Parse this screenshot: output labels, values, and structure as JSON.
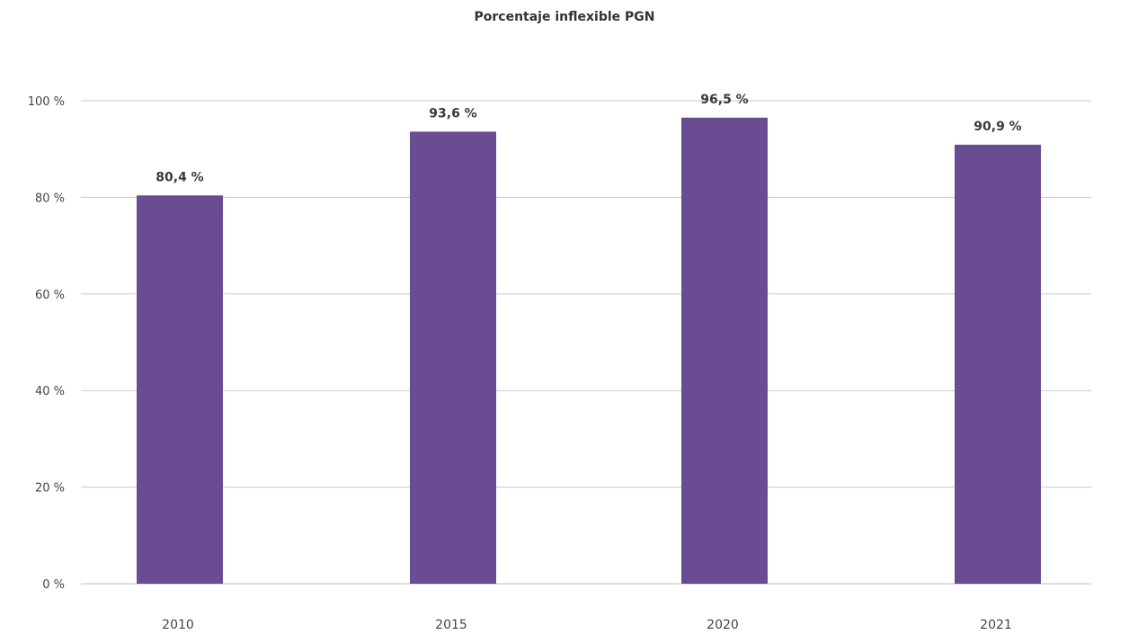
{
  "chart_data": {
    "type": "bar",
    "title": "Porcentaje inflexible PGN",
    "xlabel": "",
    "ylabel": "",
    "categories": [
      "2010",
      "2015",
      "2020",
      "2021"
    ],
    "values": [
      80.4,
      93.6,
      96.5,
      90.9
    ],
    "data_labels": [
      "80,4 %",
      "93,6 %",
      "96,5 %",
      "90,9 %"
    ],
    "ylim": [
      0,
      100
    ],
    "yticks": [
      0,
      20,
      40,
      60,
      80,
      100
    ],
    "ytick_labels": [
      "0 %",
      "20 %",
      "40 %",
      "60 %",
      "80 %",
      "100 %"
    ],
    "grid": true,
    "legend": "none",
    "bar_color": "#6a4c93"
  }
}
